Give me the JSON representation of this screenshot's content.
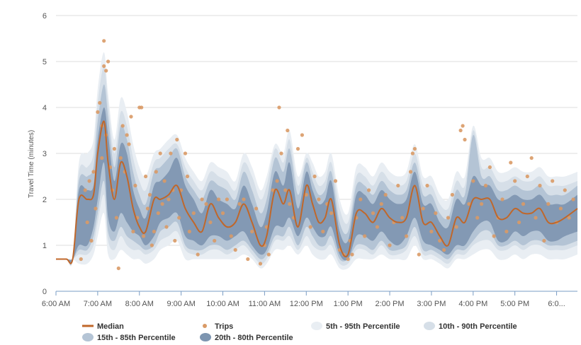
{
  "chart_data": {
    "type": "area",
    "ylabel": "Travel Time (minutes)",
    "ylim": [
      0,
      6
    ],
    "y_ticks": [
      0,
      1,
      2,
      3,
      4,
      5,
      6
    ],
    "x_range_hours": [
      6.0,
      18.5
    ],
    "x_ticks": [
      {
        "value": 6,
        "label": "6:00 AM"
      },
      {
        "value": 7,
        "label": "7:00 AM"
      },
      {
        "value": 8,
        "label": "8:00 AM"
      },
      {
        "value": 9,
        "label": "9:00 AM"
      },
      {
        "value": 10,
        "label": "10:00 AM"
      },
      {
        "value": 11,
        "label": "11:00 AM"
      },
      {
        "value": 12,
        "label": "12:00 PM"
      },
      {
        "value": 13,
        "label": "1:00 PM"
      },
      {
        "value": 14,
        "label": "2:00 PM"
      },
      {
        "value": 15,
        "label": "3:00 PM"
      },
      {
        "value": 16,
        "label": "4:00 PM"
      },
      {
        "value": 17,
        "label": "5:00 PM"
      },
      {
        "value": 18,
        "label": "6:0..."
      }
    ],
    "grid": true,
    "legend_position": "bottom",
    "colors": {
      "median": "#c0672a",
      "trips": "#d99a66",
      "band_5_95": "#e9eef3",
      "band_10_90": "#d6dfe8",
      "band_15_85": "#b4c4d5",
      "band_20_80": "#7d95b0",
      "grid": "#dddddd",
      "axis": "#7a9cc4"
    },
    "series": [
      {
        "name": "Median",
        "key": "median"
      },
      {
        "name": "Trips",
        "key": "trips"
      },
      {
        "name": "5th - 95th Percentile",
        "key": "band_5_95"
      },
      {
        "name": "10th - 90th Percentile",
        "key": "band_10_90"
      },
      {
        "name": "15th - 85th Percentile",
        "key": "band_15_85"
      },
      {
        "name": "20th - 80th Percentile",
        "key": "band_20_80"
      }
    ],
    "x": [
      6.0,
      6.25,
      6.4,
      6.55,
      6.75,
      6.9,
      7.0,
      7.15,
      7.25,
      7.4,
      7.55,
      7.7,
      7.85,
      8.0,
      8.15,
      8.35,
      8.5,
      8.7,
      8.9,
      9.1,
      9.3,
      9.5,
      9.7,
      9.9,
      10.1,
      10.3,
      10.5,
      10.7,
      10.9,
      11.05,
      11.25,
      11.45,
      11.6,
      11.8,
      12.0,
      12.15,
      12.3,
      12.45,
      12.6,
      12.8,
      13.0,
      13.2,
      13.4,
      13.6,
      13.8,
      14.0,
      14.2,
      14.4,
      14.6,
      14.8,
      15.0,
      15.2,
      15.4,
      15.6,
      15.8,
      16.0,
      16.2,
      16.4,
      16.6,
      16.8,
      17.0,
      17.2,
      17.4,
      17.6,
      17.8,
      18.0,
      18.2,
      18.5
    ],
    "median": [
      0.7,
      0.7,
      0.7,
      2.0,
      2.0,
      2.1,
      3.0,
      3.7,
      2.8,
      2.0,
      2.8,
      2.5,
      1.8,
      1.4,
      1.3,
      2.0,
      2.0,
      2.1,
      2.3,
      1.8,
      1.5,
      1.3,
      1.9,
      1.6,
      1.4,
      1.5,
      1.9,
      1.5,
      1.0,
      1.2,
      2.2,
      1.9,
      2.2,
      1.4,
      2.3,
      1.9,
      1.5,
      1.6,
      2.0,
      1.0,
      0.8,
      1.7,
      1.7,
      1.5,
      1.8,
      1.6,
      1.5,
      1.6,
      2.3,
      1.5,
      1.5,
      1.2,
      1.0,
      1.6,
      1.5,
      2.0,
      2.0,
      2.0,
      1.6,
      1.6,
      1.8,
      1.7,
      1.7,
      1.8,
      1.5,
      1.5,
      1.6,
      1.8
    ],
    "band_20_80": {
      "low": [
        0.7,
        0.7,
        0.7,
        1.0,
        1.0,
        1.4,
        2.0,
        2.8,
        1.6,
        1.3,
        1.7,
        1.5,
        1.3,
        1.2,
        1.0,
        1.2,
        1.5,
        1.6,
        1.7,
        1.2,
        1.1,
        1.0,
        1.2,
        1.2,
        1.1,
        1.2,
        1.3,
        1.0,
        0.8,
        0.9,
        1.4,
        1.4,
        1.6,
        1.2,
        1.6,
        1.4,
        1.2,
        1.2,
        1.4,
        0.8,
        0.7,
        1.2,
        1.2,
        1.1,
        1.3,
        1.1,
        1.0,
        1.2,
        1.6,
        1.1,
        1.0,
        0.9,
        0.8,
        1.0,
        1.0,
        1.3,
        1.5,
        1.5,
        1.1,
        1.1,
        1.3,
        1.2,
        1.3,
        1.3,
        1.1,
        1.1,
        1.2,
        1.3
      ],
      "high": [
        0.7,
        0.7,
        0.7,
        2.2,
        2.2,
        2.3,
        3.3,
        4.0,
        3.4,
        2.4,
        3.2,
        3.0,
        2.2,
        1.8,
        1.6,
        2.3,
        2.4,
        2.6,
        2.9,
        2.3,
        2.0,
        1.7,
        2.2,
        2.0,
        1.9,
        1.8,
        2.3,
        1.9,
        1.4,
        1.7,
        2.6,
        2.3,
        2.8,
        1.8,
        2.6,
        2.2,
        1.9,
        2.0,
        2.4,
        1.3,
        1.1,
        2.1,
        2.1,
        1.9,
        2.2,
        2.0,
        1.9,
        2.0,
        2.6,
        1.9,
        1.9,
        1.5,
        1.4,
        2.0,
        1.9,
        2.5,
        2.3,
        2.3,
        2.0,
        2.0,
        2.1,
        2.0,
        2.0,
        2.1,
        1.9,
        1.9,
        1.9,
        2.1
      ]
    },
    "band_15_85": {
      "low": [
        0.7,
        0.7,
        0.7,
        0.9,
        0.9,
        1.2,
        1.7,
        2.4,
        1.3,
        1.1,
        1.4,
        1.2,
        1.1,
        1.0,
        0.9,
        1.0,
        1.3,
        1.4,
        1.5,
        1.0,
        0.9,
        0.9,
        1.0,
        1.0,
        0.9,
        1.0,
        1.1,
        0.9,
        0.7,
        0.8,
        1.2,
        1.2,
        1.4,
        1.0,
        1.4,
        1.2,
        1.0,
        1.0,
        1.2,
        0.7,
        0.7,
        1.0,
        1.0,
        0.9,
        1.1,
        0.9,
        0.9,
        1.0,
        1.4,
        0.9,
        0.9,
        0.8,
        0.7,
        0.9,
        0.9,
        1.1,
        1.3,
        1.3,
        1.0,
        1.0,
        1.1,
        1.0,
        1.1,
        1.1,
        1.0,
        1.0,
        1.0,
        1.1
      ],
      "high": [
        0.7,
        0.7,
        0.7,
        2.4,
        2.5,
        2.7,
        3.7,
        4.5,
        3.8,
        2.7,
        3.6,
        3.3,
        2.6,
        2.1,
        1.9,
        2.6,
        2.7,
        2.9,
        3.1,
        2.5,
        2.2,
        2.0,
        2.4,
        2.3,
        2.2,
        2.0,
        2.6,
        2.2,
        1.7,
        2.0,
        2.9,
        2.6,
        3.1,
        2.1,
        2.8,
        2.4,
        2.1,
        2.2,
        2.6,
        1.5,
        1.3,
        2.3,
        2.3,
        2.1,
        2.4,
        2.2,
        2.1,
        2.2,
        2.8,
        2.1,
        2.1,
        1.7,
        1.6,
        2.2,
        2.1,
        3.4,
        2.5,
        2.5,
        2.2,
        2.2,
        2.3,
        2.2,
        2.2,
        2.3,
        2.1,
        2.1,
        2.1,
        2.3
      ]
    },
    "band_10_90": {
      "low": [
        0.7,
        0.7,
        0.7,
        0.8,
        0.8,
        1.0,
        1.5,
        2.1,
        1.1,
        0.9,
        1.2,
        1.0,
        0.9,
        0.9,
        0.8,
        0.9,
        1.1,
        1.2,
        1.3,
        0.9,
        0.8,
        0.8,
        0.9,
        0.9,
        0.8,
        0.9,
        1.0,
        0.8,
        0.6,
        0.7,
        1.1,
        1.1,
        1.2,
        0.9,
        1.2,
        1.0,
        0.9,
        0.9,
        1.0,
        0.6,
        0.6,
        0.9,
        0.9,
        0.8,
        1.0,
        0.8,
        0.8,
        0.9,
        1.2,
        0.8,
        0.8,
        0.7,
        0.6,
        0.8,
        0.8,
        1.0,
        1.1,
        1.1,
        0.9,
        0.9,
        1.0,
        0.9,
        1.0,
        1.0,
        0.9,
        0.9,
        0.9,
        1.0
      ],
      "high": [
        0.7,
        0.7,
        0.7,
        2.6,
        2.7,
        3.0,
        4.1,
        4.9,
        4.1,
        3.0,
        3.9,
        3.6,
        2.9,
        2.4,
        2.2,
        2.8,
        2.9,
        3.1,
        3.2,
        2.7,
        2.4,
        2.2,
        2.6,
        2.5,
        2.4,
        2.2,
        2.8,
        2.5,
        2.0,
        2.3,
        3.1,
        2.8,
        3.3,
        2.3,
        2.9,
        2.6,
        2.3,
        2.4,
        2.8,
        1.8,
        1.5,
        2.5,
        2.5,
        2.3,
        2.6,
        2.4,
        2.3,
        2.4,
        3.0,
        2.3,
        2.3,
        1.9,
        1.8,
        2.4,
        2.3,
        3.5,
        2.7,
        2.7,
        2.4,
        2.4,
        2.5,
        2.4,
        2.4,
        2.5,
        2.3,
        2.3,
        2.3,
        2.4
      ]
    },
    "band_5_95": {
      "low": [
        0.7,
        0.7,
        0.7,
        0.6,
        0.6,
        0.8,
        1.2,
        1.7,
        0.8,
        0.7,
        0.9,
        0.8,
        0.7,
        0.7,
        0.6,
        0.7,
        0.9,
        1.0,
        1.1,
        0.7,
        0.7,
        0.7,
        0.7,
        0.7,
        0.7,
        0.7,
        0.8,
        0.7,
        0.5,
        0.6,
        0.9,
        0.9,
        1.0,
        0.8,
        1.0,
        0.8,
        0.7,
        0.7,
        0.8,
        0.5,
        0.5,
        0.7,
        0.7,
        0.7,
        0.8,
        0.7,
        0.7,
        0.7,
        1.0,
        0.7,
        0.7,
        0.6,
        0.5,
        0.7,
        0.7,
        0.8,
        0.9,
        0.9,
        0.7,
        0.7,
        0.8,
        0.7,
        0.8,
        0.8,
        0.7,
        0.7,
        0.7,
        0.8
      ],
      "high": [
        0.7,
        0.7,
        0.7,
        2.8,
        3.0,
        3.3,
        4.4,
        5.2,
        4.3,
        3.3,
        4.2,
        3.9,
        3.2,
        2.7,
        2.5,
        3.0,
        3.1,
        3.3,
        3.4,
        2.9,
        2.6,
        2.4,
        2.8,
        2.7,
        2.6,
        2.4,
        3.0,
        2.7,
        2.2,
        2.5,
        3.2,
        3.0,
        3.5,
        2.5,
        3.0,
        2.8,
        2.5,
        2.6,
        3.0,
        2.0,
        1.7,
        2.7,
        2.7,
        2.5,
        2.8,
        2.6,
        2.5,
        2.6,
        3.2,
        2.5,
        2.5,
        2.1,
        2.0,
        2.6,
        2.5,
        3.6,
        2.9,
        2.9,
        2.6,
        2.6,
        2.7,
        2.6,
        2.6,
        2.7,
        2.5,
        2.5,
        2.5,
        2.6
      ]
    },
    "trips": [
      [
        6.6,
        0.7
      ],
      [
        6.7,
        2.2
      ],
      [
        6.75,
        1.5
      ],
      [
        6.8,
        2.4
      ],
      [
        6.85,
        1.1
      ],
      [
        6.9,
        2.6
      ],
      [
        6.95,
        1.8
      ],
      [
        7.0,
        3.9
      ],
      [
        7.05,
        4.1
      ],
      [
        7.1,
        3.6
      ],
      [
        7.1,
        2.9
      ],
      [
        7.15,
        4.9
      ],
      [
        7.15,
        5.45
      ],
      [
        7.2,
        3.4
      ],
      [
        7.2,
        4.8
      ],
      [
        7.25,
        5.0
      ],
      [
        7.3,
        2.7
      ],
      [
        7.35,
        2.2
      ],
      [
        7.4,
        3.1
      ],
      [
        7.45,
        1.6
      ],
      [
        7.5,
        0.5
      ],
      [
        7.55,
        2.9
      ],
      [
        7.6,
        3.6
      ],
      [
        7.65,
        2.6
      ],
      [
        7.7,
        3.4
      ],
      [
        7.75,
        3.2
      ],
      [
        7.8,
        3.8
      ],
      [
        7.85,
        1.3
      ],
      [
        7.9,
        2.3
      ],
      [
        7.95,
        1.6
      ],
      [
        8.0,
        4.0
      ],
      [
        8.05,
        4.0
      ],
      [
        8.1,
        1.2
      ],
      [
        8.15,
        2.5
      ],
      [
        8.2,
        1.8
      ],
      [
        8.25,
        2.1
      ],
      [
        8.3,
        1.0
      ],
      [
        8.35,
        1.3
      ],
      [
        8.4,
        2.6
      ],
      [
        8.45,
        1.7
      ],
      [
        8.5,
        3.0
      ],
      [
        8.55,
        1.9
      ],
      [
        8.6,
        2.4
      ],
      [
        8.65,
        1.4
      ],
      [
        8.7,
        2.0
      ],
      [
        8.75,
        3.0
      ],
      [
        8.8,
        2.2
      ],
      [
        8.85,
        1.1
      ],
      [
        8.9,
        3.3
      ],
      [
        8.95,
        1.6
      ],
      [
        9.0,
        2.2
      ],
      [
        9.1,
        3.0
      ],
      [
        9.15,
        2.5
      ],
      [
        9.2,
        1.3
      ],
      [
        9.3,
        1.7
      ],
      [
        9.4,
        0.8
      ],
      [
        9.5,
        2.0
      ],
      [
        9.6,
        1.9
      ],
      [
        9.7,
        1.5
      ],
      [
        9.8,
        1.1
      ],
      [
        9.9,
        2.0
      ],
      [
        10.0,
        1.7
      ],
      [
        10.1,
        2.0
      ],
      [
        10.2,
        1.2
      ],
      [
        10.3,
        0.9
      ],
      [
        10.4,
        1.9
      ],
      [
        10.5,
        2.0
      ],
      [
        10.6,
        0.7
      ],
      [
        10.7,
        1.3
      ],
      [
        10.8,
        1.8
      ],
      [
        10.9,
        0.6
      ],
      [
        11.0,
        1.0
      ],
      [
        11.05,
        1.4
      ],
      [
        11.1,
        0.8
      ],
      [
        11.2,
        2.2
      ],
      [
        11.3,
        2.4
      ],
      [
        11.35,
        4.0
      ],
      [
        11.4,
        3.0
      ],
      [
        11.5,
        2.2
      ],
      [
        11.55,
        3.5
      ],
      [
        11.6,
        1.9
      ],
      [
        11.7,
        1.6
      ],
      [
        11.8,
        3.1
      ],
      [
        11.9,
        3.4
      ],
      [
        12.0,
        2.1
      ],
      [
        12.1,
        1.4
      ],
      [
        12.2,
        2.5
      ],
      [
        12.3,
        2.0
      ],
      [
        12.4,
        1.3
      ],
      [
        12.5,
        1.9
      ],
      [
        12.6,
        1.7
      ],
      [
        12.7,
        2.4
      ],
      [
        12.8,
        0.9
      ],
      [
        12.9,
        0.8
      ],
      [
        13.0,
        0.7
      ],
      [
        13.05,
        1.1
      ],
      [
        13.1,
        0.8
      ],
      [
        13.2,
        1.6
      ],
      [
        13.3,
        2.0
      ],
      [
        13.4,
        1.2
      ],
      [
        13.5,
        2.2
      ],
      [
        13.6,
        1.7
      ],
      [
        13.7,
        1.4
      ],
      [
        13.8,
        1.9
      ],
      [
        13.9,
        2.1
      ],
      [
        14.0,
        1.0
      ],
      [
        14.1,
        1.5
      ],
      [
        14.2,
        2.3
      ],
      [
        14.3,
        1.6
      ],
      [
        14.4,
        1.2
      ],
      [
        14.5,
        2.6
      ],
      [
        14.55,
        3.0
      ],
      [
        14.6,
        3.1
      ],
      [
        14.7,
        0.8
      ],
      [
        14.8,
        1.8
      ],
      [
        14.9,
        2.3
      ],
      [
        15.0,
        1.3
      ],
      [
        15.1,
        1.7
      ],
      [
        15.2,
        1.1
      ],
      [
        15.3,
        0.9
      ],
      [
        15.4,
        1.6
      ],
      [
        15.5,
        2.1
      ],
      [
        15.6,
        1.4
      ],
      [
        15.7,
        3.5
      ],
      [
        15.75,
        3.6
      ],
      [
        15.8,
        3.3
      ],
      [
        15.9,
        1.9
      ],
      [
        16.0,
        2.4
      ],
      [
        16.1,
        1.6
      ],
      [
        16.2,
        1.9
      ],
      [
        16.3,
        2.3
      ],
      [
        16.4,
        2.7
      ],
      [
        16.5,
        1.2
      ],
      [
        16.6,
        1.6
      ],
      [
        16.7,
        2.0
      ],
      [
        16.8,
        1.3
      ],
      [
        16.9,
        2.8
      ],
      [
        17.0,
        2.4
      ],
      [
        17.1,
        1.5
      ],
      [
        17.2,
        1.9
      ],
      [
        17.3,
        2.5
      ],
      [
        17.4,
        2.9
      ],
      [
        17.5,
        1.6
      ],
      [
        17.6,
        2.3
      ],
      [
        17.7,
        1.1
      ],
      [
        17.8,
        1.9
      ],
      [
        17.9,
        2.4
      ],
      [
        18.0,
        1.5
      ],
      [
        18.1,
        1.8
      ],
      [
        18.2,
        2.2
      ],
      [
        18.3,
        1.6
      ],
      [
        18.4,
        2.0
      ]
    ]
  }
}
